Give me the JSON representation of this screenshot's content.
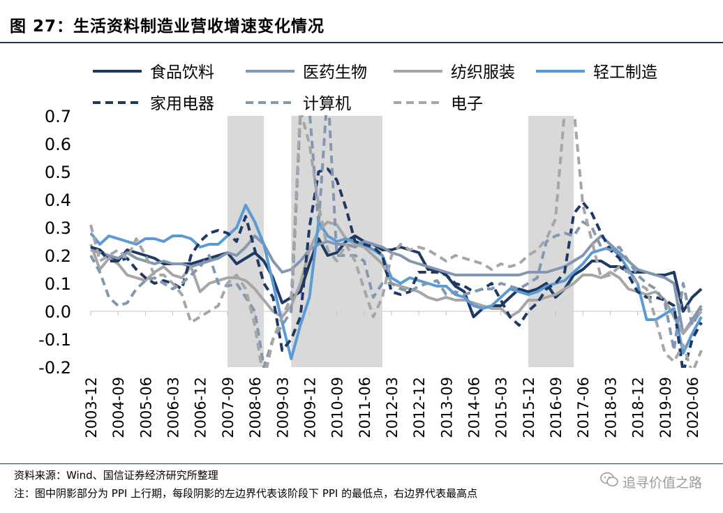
{
  "header": {
    "title": "图 27：生活资料制造业营收增速变化情况"
  },
  "footer": {
    "source": "资料来源：Wind、国信证券经济研究所整理",
    "note": "注：图中阴影部分为 PPI 上行期，每段阴影的左边界代表该阶段下 PPI 的最低点，右边界代表最高点",
    "watermark": "追寻价值之路"
  },
  "icons": {
    "watermark": "wechat-icon"
  },
  "chart_data": {
    "type": "line",
    "title": "",
    "xlabel": "",
    "ylabel": "",
    "ylim": [
      -0.2,
      0.7
    ],
    "yticks": [
      "0.7",
      "0.6",
      "0.5",
      "0.4",
      "0.3",
      "0.2",
      "0.1",
      "0.0",
      "-0.1",
      "-0.2"
    ],
    "x": [
      "2003-12",
      "2004-03",
      "2004-06",
      "2004-09",
      "2004-12",
      "2005-03",
      "2005-06",
      "2005-09",
      "2005-12",
      "2006-03",
      "2006-06",
      "2006-09",
      "2006-12",
      "2007-03",
      "2007-06",
      "2007-09",
      "2007-12",
      "2008-03",
      "2008-06",
      "2008-09",
      "2008-12",
      "2009-03",
      "2009-06",
      "2009-09",
      "2009-12",
      "2010-03",
      "2010-06",
      "2010-09",
      "2010-12",
      "2011-03",
      "2011-06",
      "2011-09",
      "2011-12",
      "2012-03",
      "2012-06",
      "2012-09",
      "2012-12",
      "2013-03",
      "2013-06",
      "2013-09",
      "2013-12",
      "2014-03",
      "2014-06",
      "2014-09",
      "2014-12",
      "2015-03",
      "2015-06",
      "2015-09",
      "2015-12",
      "2016-03",
      "2016-06",
      "2016-09",
      "2016-12",
      "2017-03",
      "2017-06",
      "2017-09",
      "2017-12",
      "2018-03",
      "2018-06",
      "2018-09",
      "2018-12",
      "2019-03",
      "2019-06",
      "2019-09",
      "2019-12",
      "2020-03",
      "2020-06",
      "2020-09"
    ],
    "xticks": [
      "2003-12",
      "2004-09",
      "2005-06",
      "2006-03",
      "2006-12",
      "2007-09",
      "2008-06",
      "2009-03",
      "2009-12",
      "2010-09",
      "2011-06",
      "2012-03",
      "2012-12",
      "2013-09",
      "2014-06",
      "2015-03",
      "2015-12",
      "2016-09",
      "2017-06",
      "2018-03",
      "2018-12",
      "2019-09",
      "2020-06"
    ],
    "shaded_periods": [
      [
        "2007-09",
        "2008-09"
      ],
      [
        "2009-06",
        "2011-12"
      ],
      [
        "2015-12",
        "2017-03"
      ]
    ],
    "legend_placement": "top",
    "grid": false,
    "series": [
      {
        "name": "食品饮料",
        "color": "#1f3864",
        "dash": "solid",
        "values": [
          0.23,
          0.22,
          0.19,
          0.18,
          0.22,
          0.21,
          0.2,
          0.19,
          0.17,
          0.17,
          0.17,
          0.17,
          0.18,
          0.19,
          0.2,
          0.21,
          0.17,
          0.19,
          0.21,
          0.18,
          0.12,
          0.03,
          0.05,
          0.07,
          0.17,
          0.26,
          0.2,
          0.21,
          0.25,
          0.27,
          0.25,
          0.24,
          0.22,
          0.22,
          0.23,
          0.22,
          0.21,
          0.15,
          0.15,
          0.13,
          0.09,
          0.07,
          -0.02,
          0.01,
          0.02,
          0.02,
          0.05,
          0.08,
          0.07,
          0.08,
          0.1,
          0.05,
          0.08,
          0.13,
          0.15,
          0.18,
          0.18,
          0.16,
          0.16,
          0.14,
          0.14,
          0.14,
          0.13,
          0.13,
          0.14,
          0.0,
          0.05,
          0.08
        ]
      },
      {
        "name": "医药生物",
        "color": "#8497b0",
        "dash": "solid",
        "values": [
          0.22,
          0.21,
          0.2,
          0.19,
          0.21,
          0.19,
          0.18,
          0.17,
          0.18,
          0.17,
          0.17,
          0.16,
          0.17,
          0.18,
          0.19,
          0.21,
          0.2,
          0.23,
          0.27,
          0.24,
          0.18,
          0.14,
          0.15,
          0.18,
          0.22,
          0.24,
          0.25,
          0.24,
          0.24,
          0.23,
          0.25,
          0.24,
          0.23,
          0.21,
          0.2,
          0.18,
          0.17,
          0.16,
          0.15,
          0.14,
          0.13,
          0.13,
          0.13,
          0.13,
          0.13,
          0.13,
          0.13,
          0.13,
          0.14,
          0.14,
          0.14,
          0.15,
          0.16,
          0.18,
          0.2,
          0.24,
          0.27,
          0.24,
          0.21,
          0.18,
          0.15,
          0.14,
          0.13,
          0.12,
          0.1,
          -0.08,
          -0.03,
          0.02
        ]
      },
      {
        "name": "纺织服装",
        "color": "#a6a6a6",
        "dash": "solid",
        "values": [
          0.24,
          0.15,
          0.19,
          0.17,
          0.13,
          0.12,
          0.11,
          0.14,
          0.16,
          0.13,
          0.12,
          0.16,
          0.07,
          0.1,
          0.11,
          0.12,
          0.12,
          0.11,
          0.08,
          0.04,
          0.0,
          -0.02,
          0.02,
          0.1,
          0.22,
          0.29,
          0.32,
          0.31,
          0.26,
          0.24,
          0.23,
          0.2,
          0.17,
          0.1,
          0.09,
          0.08,
          0.07,
          0.05,
          0.04,
          0.05,
          0.04,
          0.04,
          0.03,
          0.02,
          0.01,
          0.01,
          -0.02,
          0.0,
          0.04,
          0.04,
          0.05,
          0.06,
          0.08,
          0.1,
          0.13,
          0.13,
          0.12,
          0.14,
          0.12,
          0.08,
          0.07,
          0.06,
          0.07,
          0.04,
          -0.02,
          -0.08,
          -0.04,
          0.0
        ]
      },
      {
        "name": "轻工制造",
        "color": "#5b9bd5",
        "dash": "solid",
        "values": [
          0.28,
          0.24,
          0.27,
          0.26,
          0.25,
          0.24,
          0.26,
          0.26,
          0.25,
          0.27,
          0.27,
          0.26,
          0.23,
          0.24,
          0.24,
          0.27,
          0.3,
          0.38,
          0.32,
          0.24,
          0.1,
          -0.04,
          -0.17,
          -0.05,
          0.05,
          0.32,
          0.27,
          0.25,
          0.26,
          0.25,
          0.24,
          0.22,
          0.2,
          0.12,
          0.1,
          0.12,
          0.11,
          0.1,
          0.09,
          0.09,
          0.06,
          0.05,
          0.02,
          0.01,
          0.02,
          0.05,
          0.08,
          0.07,
          0.06,
          0.07,
          0.09,
          0.1,
          0.11,
          0.14,
          0.17,
          0.21,
          0.22,
          0.23,
          0.2,
          0.15,
          0.1,
          -0.03,
          -0.03,
          -0.01,
          0.01,
          -0.15,
          -0.08,
          -0.02
        ]
      },
      {
        "name": "家用电器",
        "color": "#1f3864",
        "dash": "dash",
        "values": [
          0.23,
          0.22,
          0.18,
          0.18,
          0.19,
          0.15,
          0.12,
          0.1,
          0.11,
          0.1,
          0.08,
          0.2,
          0.25,
          0.28,
          0.29,
          0.28,
          0.25,
          0.34,
          0.22,
          0.1,
          0.05,
          -0.14,
          -0.1,
          -0.02,
          0.3,
          0.5,
          0.51,
          0.47,
          0.37,
          0.25,
          0.24,
          0.23,
          0.2,
          0.07,
          0.06,
          0.07,
          0.14,
          0.14,
          0.14,
          0.13,
          0.1,
          0.09,
          0.07,
          0.08,
          0.1,
          0.04,
          -0.02,
          -0.05,
          0.0,
          0.03,
          0.08,
          0.1,
          0.14,
          0.35,
          0.39,
          0.35,
          0.28,
          0.22,
          0.19,
          0.13,
          0.07,
          0.05,
          0.05,
          0.04,
          0.02,
          -0.22,
          -0.1,
          -0.04
        ]
      },
      {
        "name": "计算机",
        "color": "#8497b0",
        "dash": "dash",
        "values": [
          0.2,
          0.14,
          0.05,
          0.02,
          0.03,
          0.08,
          0.11,
          0.12,
          0.1,
          0.08,
          0.1,
          0.13,
          0.16,
          0.2,
          0.1,
          0.09,
          0.1,
          0.05,
          0.0,
          -0.2,
          -0.1,
          -0.05,
          0.0,
          0.7,
          0.72,
          0.31,
          0.8,
          0.2,
          0.2,
          0.2,
          0.18,
          0.05,
          0.1,
          0.1,
          0.08,
          0.07,
          0.09,
          0.1,
          0.11,
          0.06,
          0.07,
          0.06,
          0.07,
          0.08,
          0.08,
          0.1,
          0.09,
          0.08,
          0.1,
          0.12,
          0.25,
          0.27,
          0.28,
          0.27,
          0.32,
          0.3,
          0.23,
          0.22,
          0.23,
          0.18,
          0.13,
          0.1,
          0.08,
          0.03,
          -0.14,
          0.1,
          -0.05,
          0.01
        ]
      },
      {
        "name": "电子",
        "color": "#a6a6a6",
        "dash": "dash",
        "values": [
          0.31,
          0.18,
          0.2,
          0.22,
          0.19,
          0.26,
          0.2,
          0.13,
          0.13,
          0.1,
          0.06,
          -0.04,
          -0.02,
          0.0,
          0.02,
          0.1,
          0.13,
          0.08,
          -0.05,
          -0.25,
          -0.1,
          -0.02,
          0.05,
          0.72,
          0.6,
          0.38,
          0.22,
          0.18,
          0.24,
          0.18,
          0.08,
          -0.02,
          0.05,
          0.2,
          0.24,
          0.22,
          0.23,
          0.22,
          0.2,
          0.18,
          0.2,
          0.19,
          0.18,
          0.17,
          0.15,
          0.17,
          0.16,
          0.17,
          0.2,
          0.22,
          0.26,
          0.33,
          0.72,
          0.73,
          0.38,
          0.25,
          0.12,
          0.13,
          0.16,
          0.14,
          0.1,
          0.08,
          -0.03,
          -0.15,
          -0.18,
          -0.12,
          -0.22,
          -0.14
        ]
      }
    ]
  }
}
